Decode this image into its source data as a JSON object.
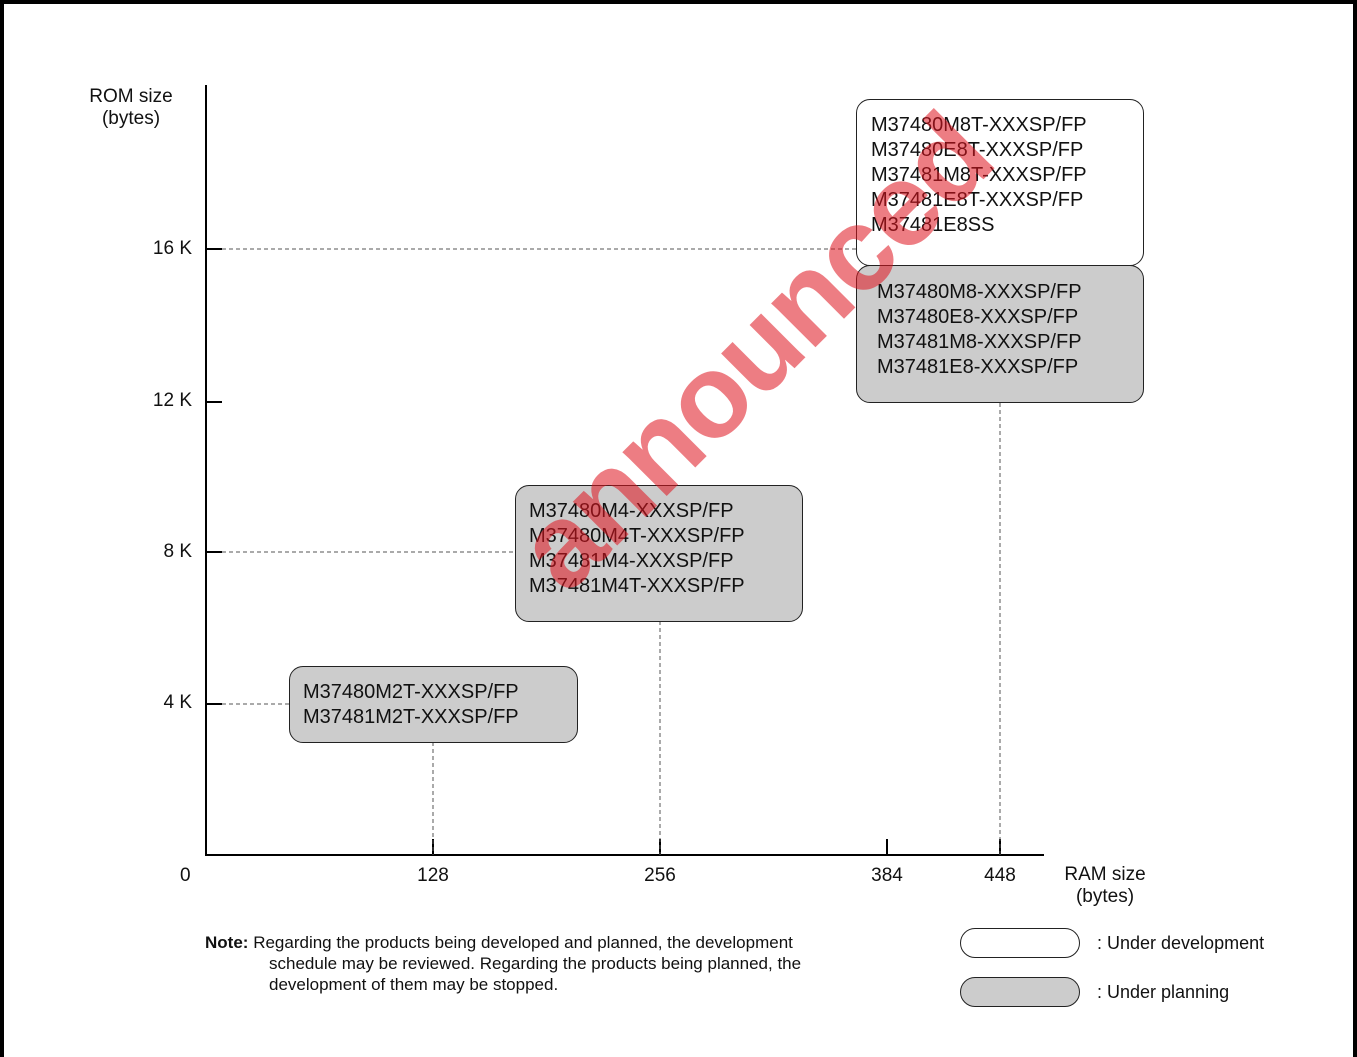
{
  "axes": {
    "y_title": [
      "ROM size",
      "(bytes)"
    ],
    "x_title": [
      "RAM size",
      "(bytes)"
    ],
    "origin_label": "0",
    "y_ticks": [
      "4 K",
      "8 K",
      "12 K",
      "16 K"
    ],
    "x_ticks": [
      "128",
      "256",
      "384",
      "448"
    ]
  },
  "groups": [
    {
      "status": "under-development",
      "lines": [
        "M37480M8T-XXXSP/FP",
        "M37480E8T-XXXSP/FP",
        "M37481M8T-XXXSP/FP",
        "M37481E8T-XXXSP/FP",
        "M37481E8SS"
      ]
    },
    {
      "status": "under-planning",
      "lines": [
        "M37480M8-XXXSP/FP",
        "M37480E8-XXXSP/FP",
        "M37481M8-XXXSP/FP",
        "M37481E8-XXXSP/FP"
      ]
    },
    {
      "status": "under-planning",
      "lines": [
        "M37480M4-XXXSP/FP",
        "M37480M4T-XXXSP/FP",
        "M37481M4-XXXSP/FP",
        "M37481M4T-XXXSP/FP"
      ]
    },
    {
      "status": "under-planning",
      "lines": [
        "M37480M2T-XXXSP/FP",
        "M37481M2T-XXXSP/FP"
      ]
    }
  ],
  "note": {
    "label": "Note:",
    "lines": [
      "Regarding the products being developed and planned, the development",
      "schedule may be reviewed. Regarding the products being planned, the",
      "development of them may be stopped."
    ]
  },
  "legend": {
    "development": ": Under development",
    "planning": ": Under planning"
  },
  "watermark": "announced",
  "colors": {
    "planning_fill": "#cccccc",
    "development_fill": "#ffffff",
    "watermark": "#e0141e"
  }
}
